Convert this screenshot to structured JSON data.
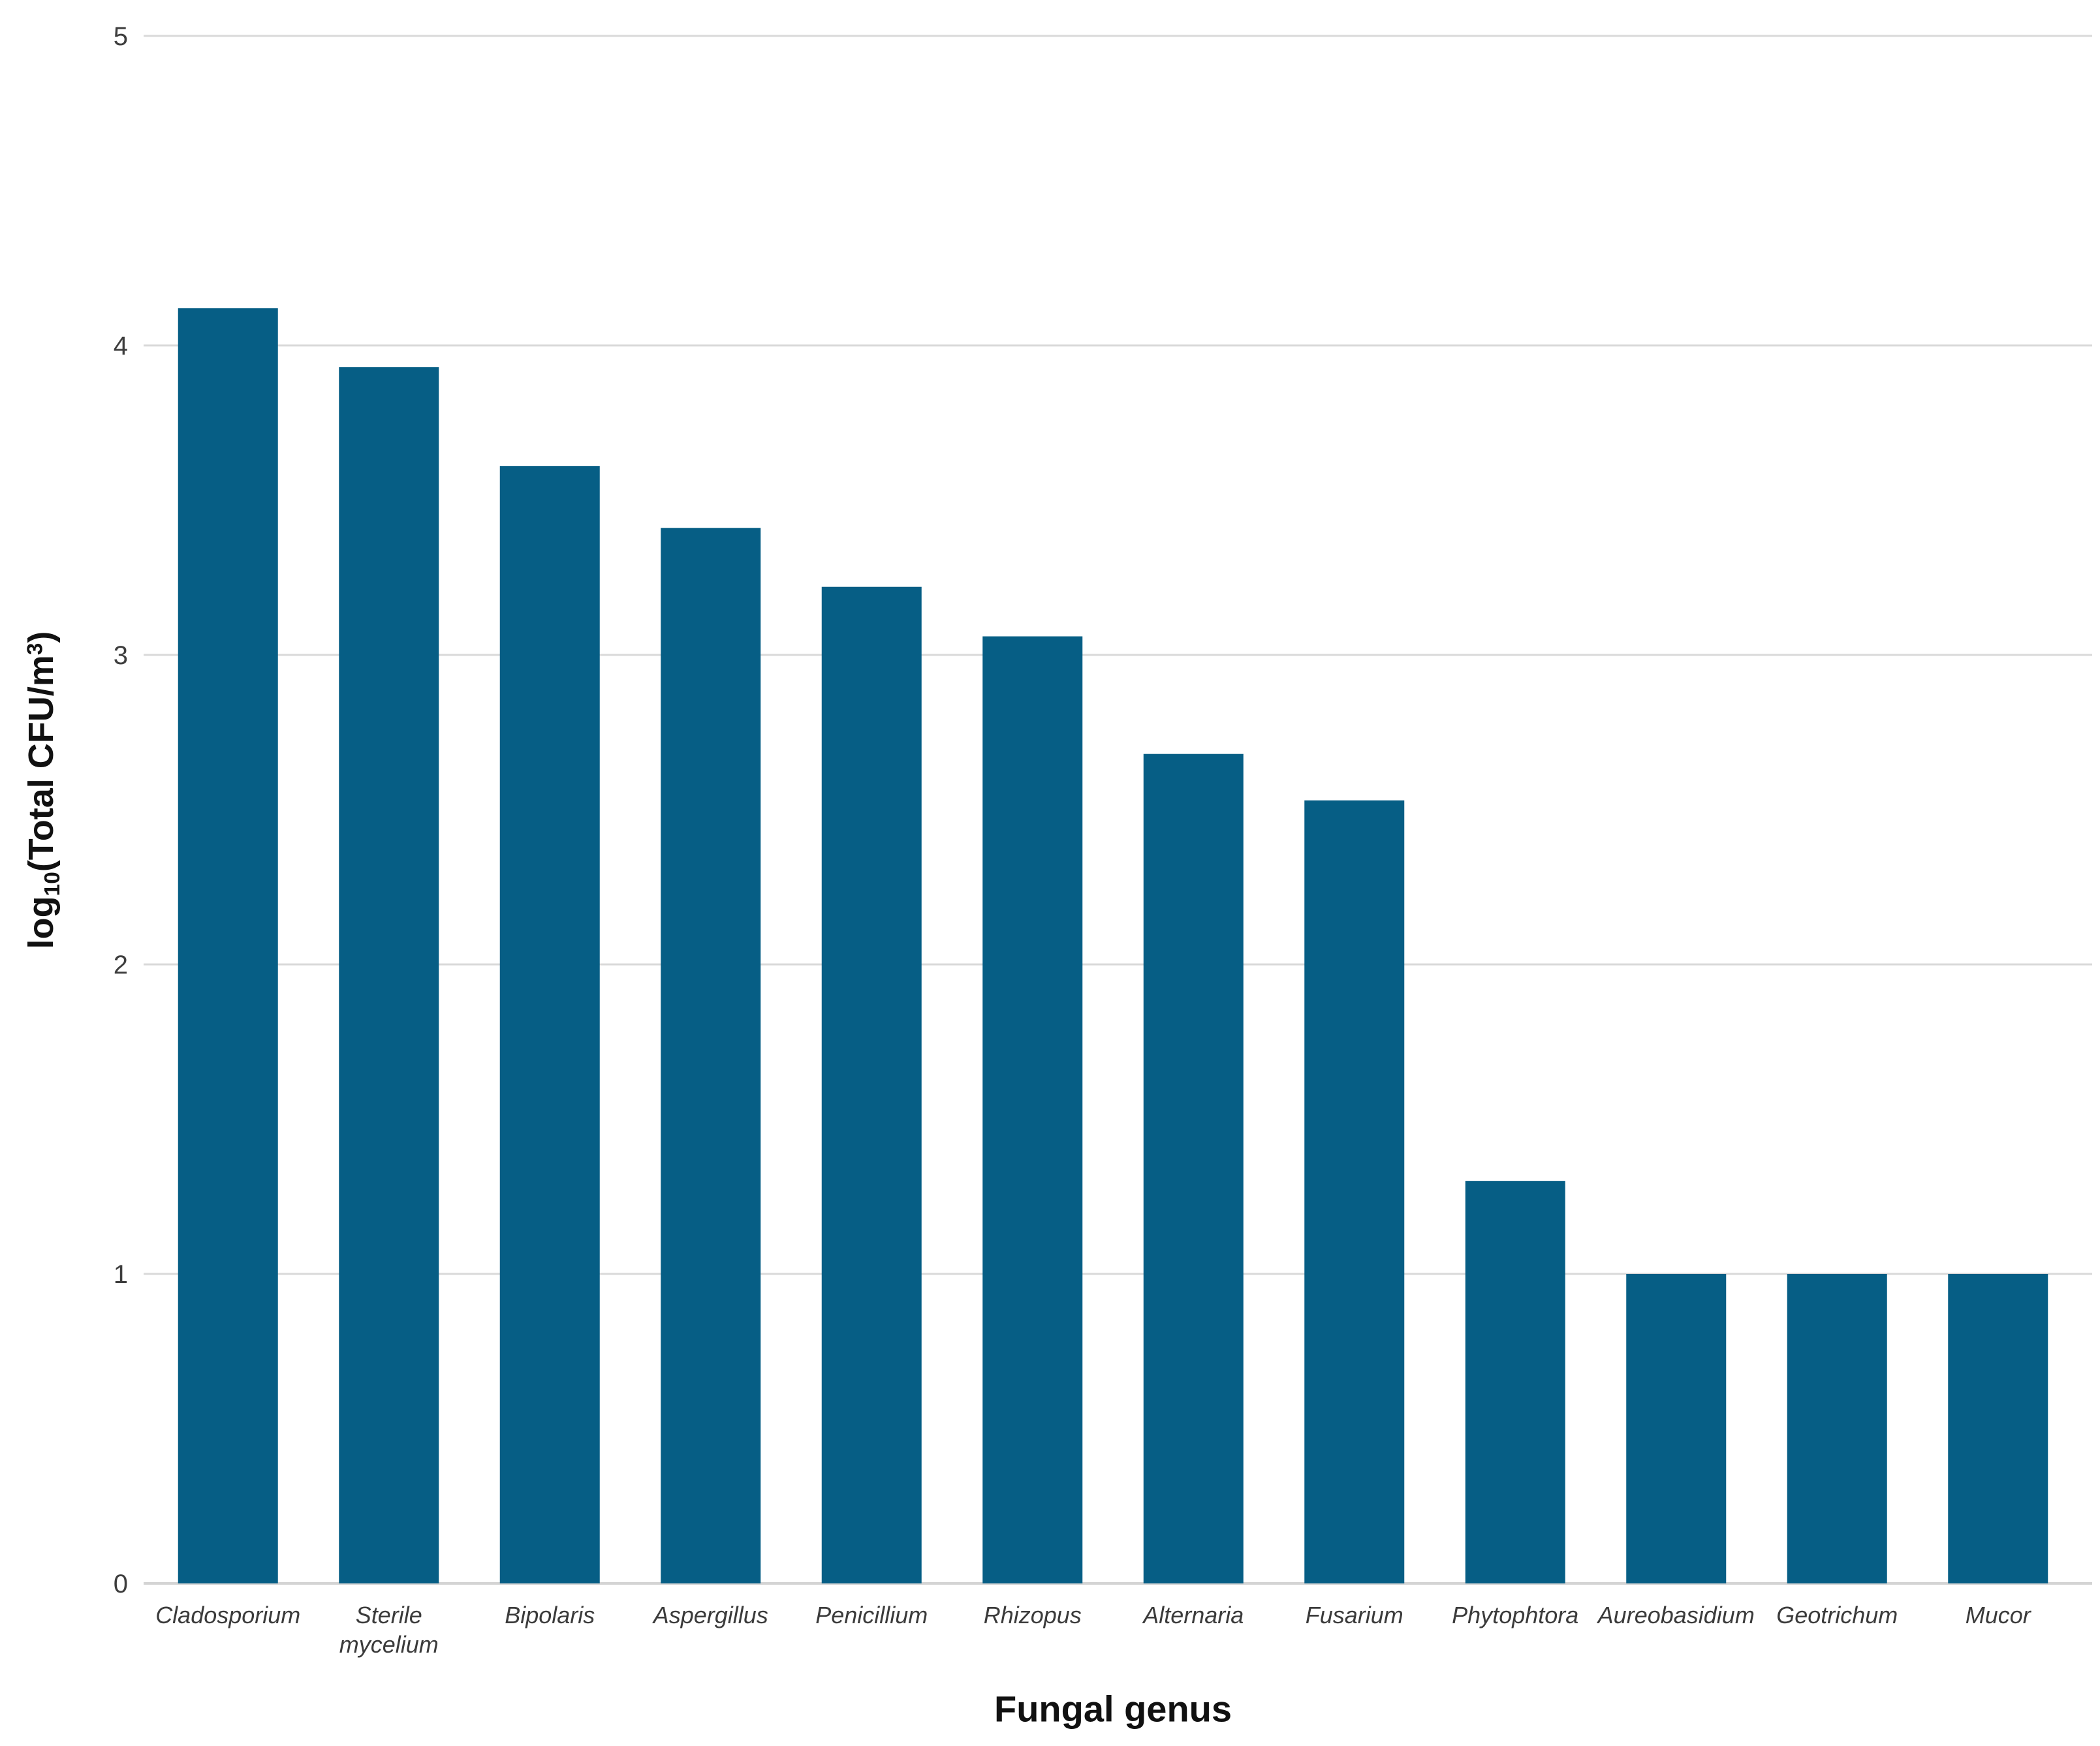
{
  "chart_data": {
    "type": "bar",
    "title": "",
    "xlabel": "Fungal genus",
    "ylabel": {
      "text": "log₁₀(Total CFU/m³)",
      "parts": [
        {
          "t": "log",
          "style": "normal"
        },
        {
          "t": "10",
          "style": "sub"
        },
        {
          "t": "(Total CFU/m",
          "style": "normal"
        },
        {
          "t": "3",
          "style": "sup"
        },
        {
          "t": ")",
          "style": "normal"
        }
      ]
    },
    "categories": [
      "Cladosporium",
      "Sterile mycelium",
      "Bipolaris",
      "Aspergillus",
      "Penicillium",
      "Rhizopus",
      "Alternaria",
      "Fusarium",
      "Phytophtora",
      "Aureobasidium",
      "Geotrichum",
      "Mucor"
    ],
    "values": [
      4.12,
      3.93,
      3.61,
      3.41,
      3.22,
      3.06,
      2.68,
      2.53,
      1.3,
      1.0,
      1.0,
      1.0
    ],
    "ylim": [
      0,
      5
    ],
    "yticks": [
      0,
      1,
      2,
      3,
      4,
      5
    ],
    "grid": true,
    "legend": false,
    "bar_color": "#065e85",
    "gridline_color": "#d9d9d9",
    "zero_line_color": "#d4d4d4",
    "tick_label_color": "#3d3d3d",
    "category_label_color": "#3b3b3b",
    "axis_title_color": "#111111",
    "background_color": "#ffffff"
  }
}
